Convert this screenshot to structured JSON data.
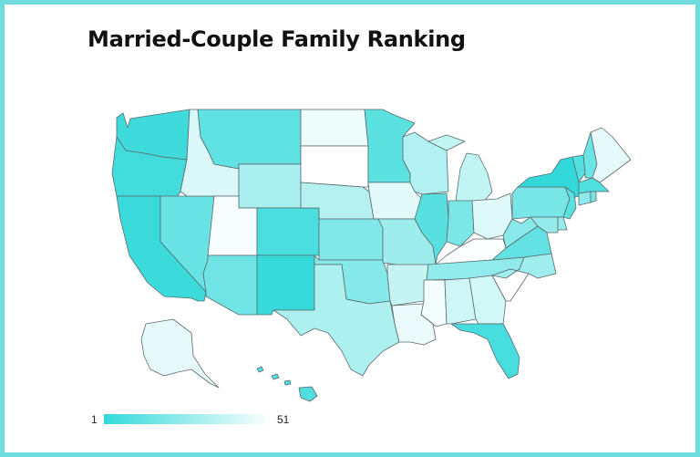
{
  "title": "Married-Couple Family Ranking",
  "legend": {
    "min_label": "1",
    "max_label": "51",
    "colors": {
      "rank_1": "#33d9da",
      "rank_51": "#ffffff"
    }
  },
  "frame_color": "#6fdde0",
  "chart_data": {
    "type": "choropleth",
    "metric": "rank",
    "range": [
      1,
      51
    ],
    "regions": [
      {
        "state": "WA",
        "rank": 4
      },
      {
        "state": "OR",
        "rank": 5
      },
      {
        "state": "CA",
        "rank": 3
      },
      {
        "state": "NV",
        "rank": 14
      },
      {
        "state": "ID",
        "rank": 42
      },
      {
        "state": "MT",
        "rank": 12
      },
      {
        "state": "WY",
        "rank": 30
      },
      {
        "state": "UT",
        "rank": 49
      },
      {
        "state": "AZ",
        "rank": 16
      },
      {
        "state": "CO",
        "rank": 7
      },
      {
        "state": "NM",
        "rank": 2
      },
      {
        "state": "ND",
        "rank": 47
      },
      {
        "state": "SD",
        "rank": 51
      },
      {
        "state": "NE",
        "rank": 33
      },
      {
        "state": "KS",
        "rank": 20
      },
      {
        "state": "OK",
        "rank": 21
      },
      {
        "state": "TX",
        "rank": 31
      },
      {
        "state": "MN",
        "rank": 11
      },
      {
        "state": "IA",
        "rank": 44
      },
      {
        "state": "MO",
        "rank": 27
      },
      {
        "state": "AR",
        "rank": 37
      },
      {
        "state": "LA",
        "rank": 46
      },
      {
        "state": "WI",
        "rank": 32
      },
      {
        "state": "IL",
        "rank": 10
      },
      {
        "state": "MI",
        "rank": 36
      },
      {
        "state": "IN",
        "rank": 19
      },
      {
        "state": "OH",
        "rank": 43
      },
      {
        "state": "KY",
        "rank": 50
      },
      {
        "state": "TN",
        "rank": 24
      },
      {
        "state": "MS",
        "rank": 48
      },
      {
        "state": "AL",
        "rank": 39
      },
      {
        "state": "GA",
        "rank": 40
      },
      {
        "state": "FL",
        "rank": 6
      },
      {
        "state": "SC",
        "rank": 51
      },
      {
        "state": "NC",
        "rank": 28
      },
      {
        "state": "VA",
        "rank": 13
      },
      {
        "state": "WV",
        "rank": 22
      },
      {
        "state": "PA",
        "rank": 18
      },
      {
        "state": "NY",
        "rank": 1
      },
      {
        "state": "VT",
        "rank": 9
      },
      {
        "state": "NH",
        "rank": 15
      },
      {
        "state": "ME",
        "rank": 45
      },
      {
        "state": "MA",
        "rank": 8
      },
      {
        "state": "CT",
        "rank": 23
      },
      {
        "state": "RI",
        "rank": 17
      },
      {
        "state": "NJ",
        "rank": 11
      },
      {
        "state": "DE",
        "rank": 26
      },
      {
        "state": "MD",
        "rank": 25
      },
      {
        "state": "AK",
        "rank": 45
      },
      {
        "state": "HI",
        "rank": 8
      }
    ]
  }
}
